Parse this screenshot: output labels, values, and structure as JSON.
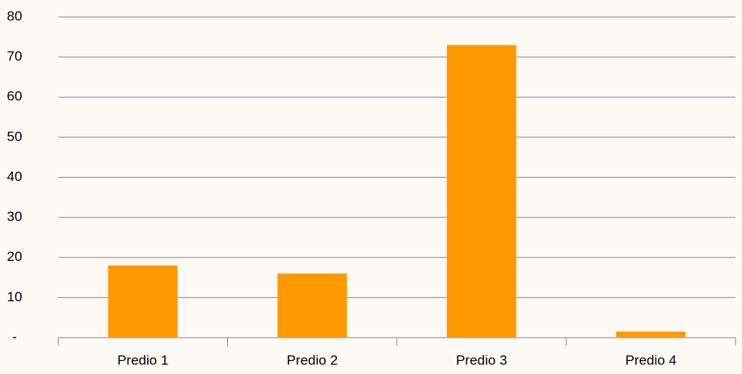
{
  "chart_data": {
    "type": "bar",
    "categories": [
      "Predio 1",
      "Predio 2",
      "Predio 3",
      "Predio 4"
    ],
    "values": [
      18,
      16,
      73,
      1.5
    ],
    "color": "#ff9900",
    "ylim": [
      0,
      80
    ],
    "yticks": [
      {
        "value": 0,
        "label": "-"
      },
      10,
      20,
      30,
      40,
      50,
      60,
      70,
      80
    ],
    "grid": true
  }
}
